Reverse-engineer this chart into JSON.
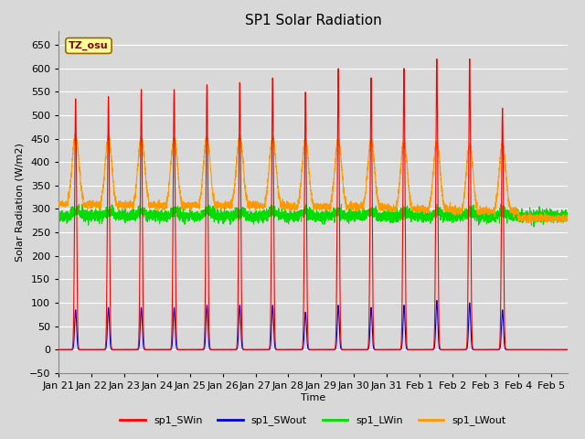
{
  "title": "SP1 Solar Radiation",
  "ylabel": "Solar Radiation (W/m2)",
  "xlabel": "Time",
  "ylim": [
    -50,
    680
  ],
  "yticks": [
    -50,
    0,
    50,
    100,
    150,
    200,
    250,
    300,
    350,
    400,
    450,
    500,
    550,
    600,
    650
  ],
  "bg_color": "#d8d8d8",
  "plot_bg": "#d8d8d8",
  "grid_color": "white",
  "colors": {
    "SWin": "#ff0000",
    "SWout": "#0000cc",
    "LWin": "#00dd00",
    "LWout": "#ff9900"
  },
  "tz_label": "TZ_osu",
  "tz_box_facecolor": "#ffff99",
  "tz_box_edgecolor": "#996600",
  "n_days": 15.5,
  "pts_per_day": 288,
  "SWin_peaks": [
    535,
    540,
    555,
    555,
    565,
    570,
    580,
    550,
    600,
    580,
    600,
    620,
    620,
    515
  ],
  "SWout_peaks": [
    85,
    90,
    90,
    90,
    95,
    95,
    95,
    80,
    95,
    90,
    95,
    105,
    100,
    85
  ],
  "LWin_base": 285,
  "LWout_base_day": [
    325,
    320,
    320,
    318,
    320,
    320,
    320,
    315,
    315,
    315,
    310,
    310,
    305,
    305
  ],
  "LWout_base_night": [
    310,
    308,
    308,
    308,
    308,
    308,
    308,
    305,
    305,
    305,
    300,
    300,
    295,
    295
  ],
  "LWout_peak": 130,
  "legend_labels": [
    "sp1_SWin",
    "sp1_SWout",
    "sp1_LWin",
    "sp1_LWout"
  ],
  "tick_labels": [
    "Jan 21",
    "Jan 22",
    "Jan 23",
    "Jan 24",
    "Jan 25",
    "Jan 26",
    "Jan 27",
    "Jan 28",
    "Jan 29",
    "Jan 30",
    "Jan 31",
    "Feb 1",
    "Feb 2",
    "Feb 3",
    "Feb 4",
    "Feb 5"
  ]
}
